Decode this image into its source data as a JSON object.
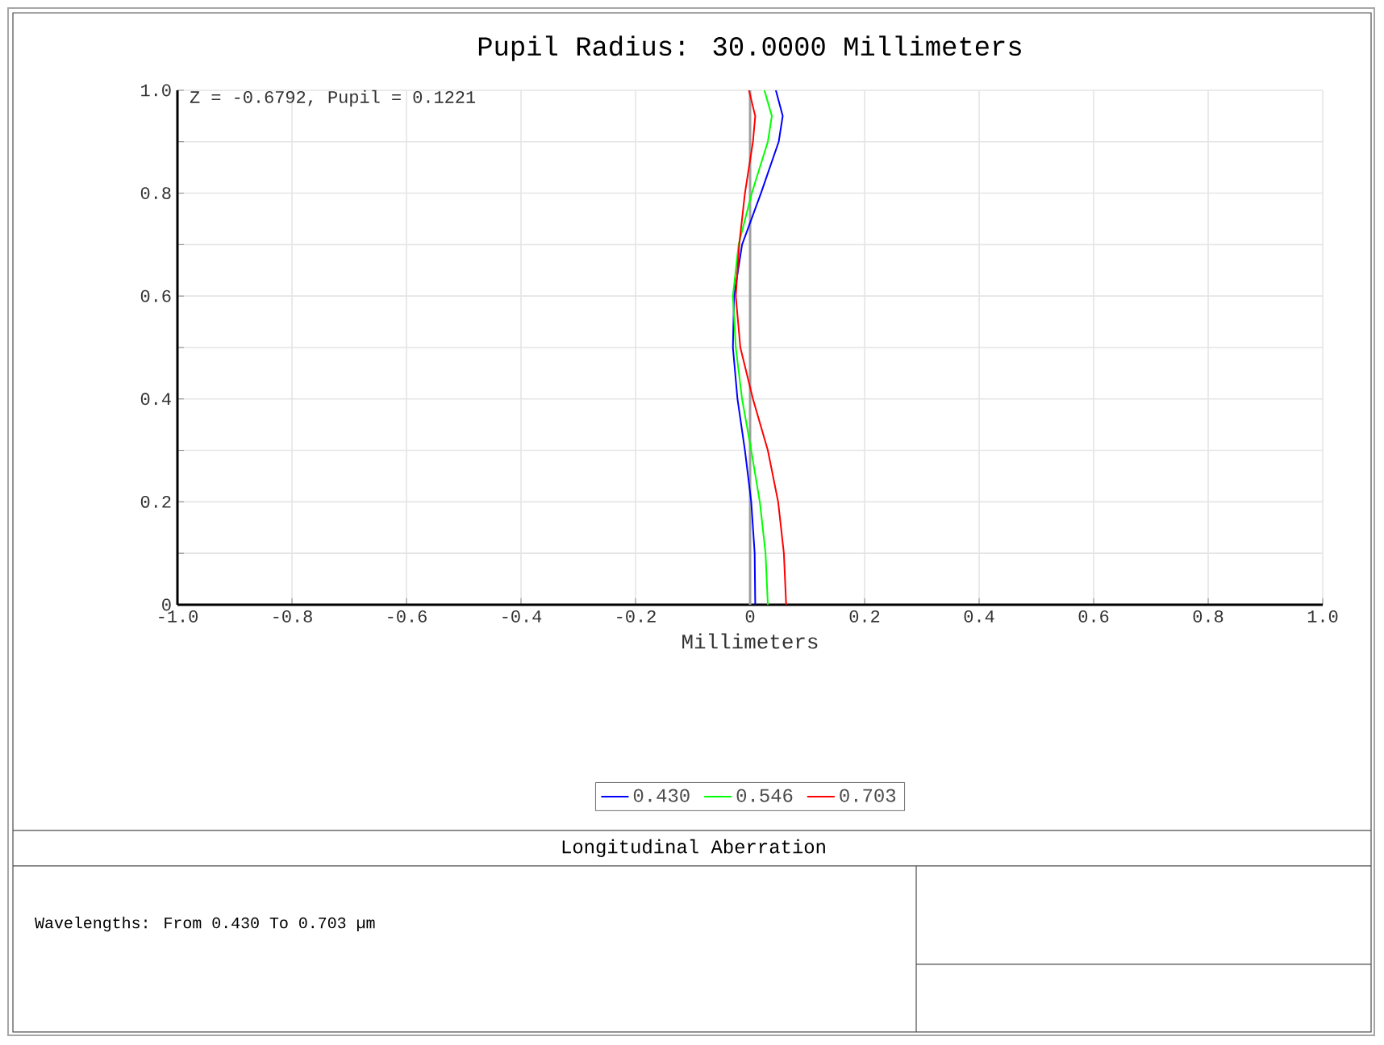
{
  "chart_data": {
    "type": "line",
    "title": "Pupil Radius: 30.0000 Millimeters",
    "xlabel": "Millimeters",
    "annotations": [
      "Z = -0.6792, Pupil = 0.1221",
      "Longitudinal Aberration",
      "Wavelengths: From 0.430 To 0.703 µm"
    ],
    "xlim": [
      -1,
      1
    ],
    "ylim": [
      0,
      1
    ],
    "xticks": [
      {
        "value": -1,
        "label": "-1.0"
      },
      -0.8,
      -0.6,
      -0.4,
      -0.2,
      0,
      0.2,
      0.4,
      0.6,
      0.8,
      {
        "value": 1,
        "label": "1.0"
      }
    ],
    "yticks": [
      0,
      {
        "value": 0.1,
        "label": null
      },
      0.2,
      {
        "value": 0.3,
        "label": null
      },
      0.4,
      {
        "value": 0.5,
        "label": null
      },
      0.6,
      {
        "value": 0.7,
        "label": null
      },
      0.8,
      {
        "value": 0.9,
        "label": null
      },
      {
        "value": 1,
        "label": "1.0"
      }
    ],
    "grid": true,
    "legend": "bottom",
    "marker": "none",
    "line_style": "solid",
    "ref_lines": [
      {
        "axis": "x",
        "value": 0,
        "color": "#a0a0a0"
      }
    ],
    "series": [
      {
        "name": "0.430",
        "color": "#0000ff",
        "x": [
          0.009,
          0.008,
          0.002,
          -0.009,
          -0.022,
          -0.03,
          -0.028,
          -0.014,
          0.019,
          0.05,
          0.057,
          0.045
        ],
        "values": [
          0,
          0.1,
          0.2,
          0.3,
          0.4,
          0.5,
          0.6,
          0.7,
          0.8,
          0.9,
          0.95,
          1
        ]
      },
      {
        "name": "0.546",
        "color": "#00ff00",
        "x": [
          0.031,
          0.027,
          0.017,
          0.002,
          -0.014,
          -0.025,
          -0.03,
          -0.02,
          0.003,
          0.031,
          0.038,
          0.025
        ],
        "values": [
          0,
          0.1,
          0.2,
          0.3,
          0.4,
          0.5,
          0.6,
          0.7,
          0.8,
          0.9,
          0.95,
          1
        ]
      },
      {
        "name": "0.703",
        "color": "#ff0000",
        "x": [
          0.063,
          0.059,
          0.049,
          0.031,
          0.005,
          -0.017,
          -0.025,
          -0.019,
          -0.009,
          0.005,
          0.009,
          -0.002
        ],
        "values": [
          0,
          0.1,
          0.2,
          0.3,
          0.4,
          0.5,
          0.6,
          0.7,
          0.8,
          0.9,
          0.95,
          1
        ]
      }
    ]
  }
}
